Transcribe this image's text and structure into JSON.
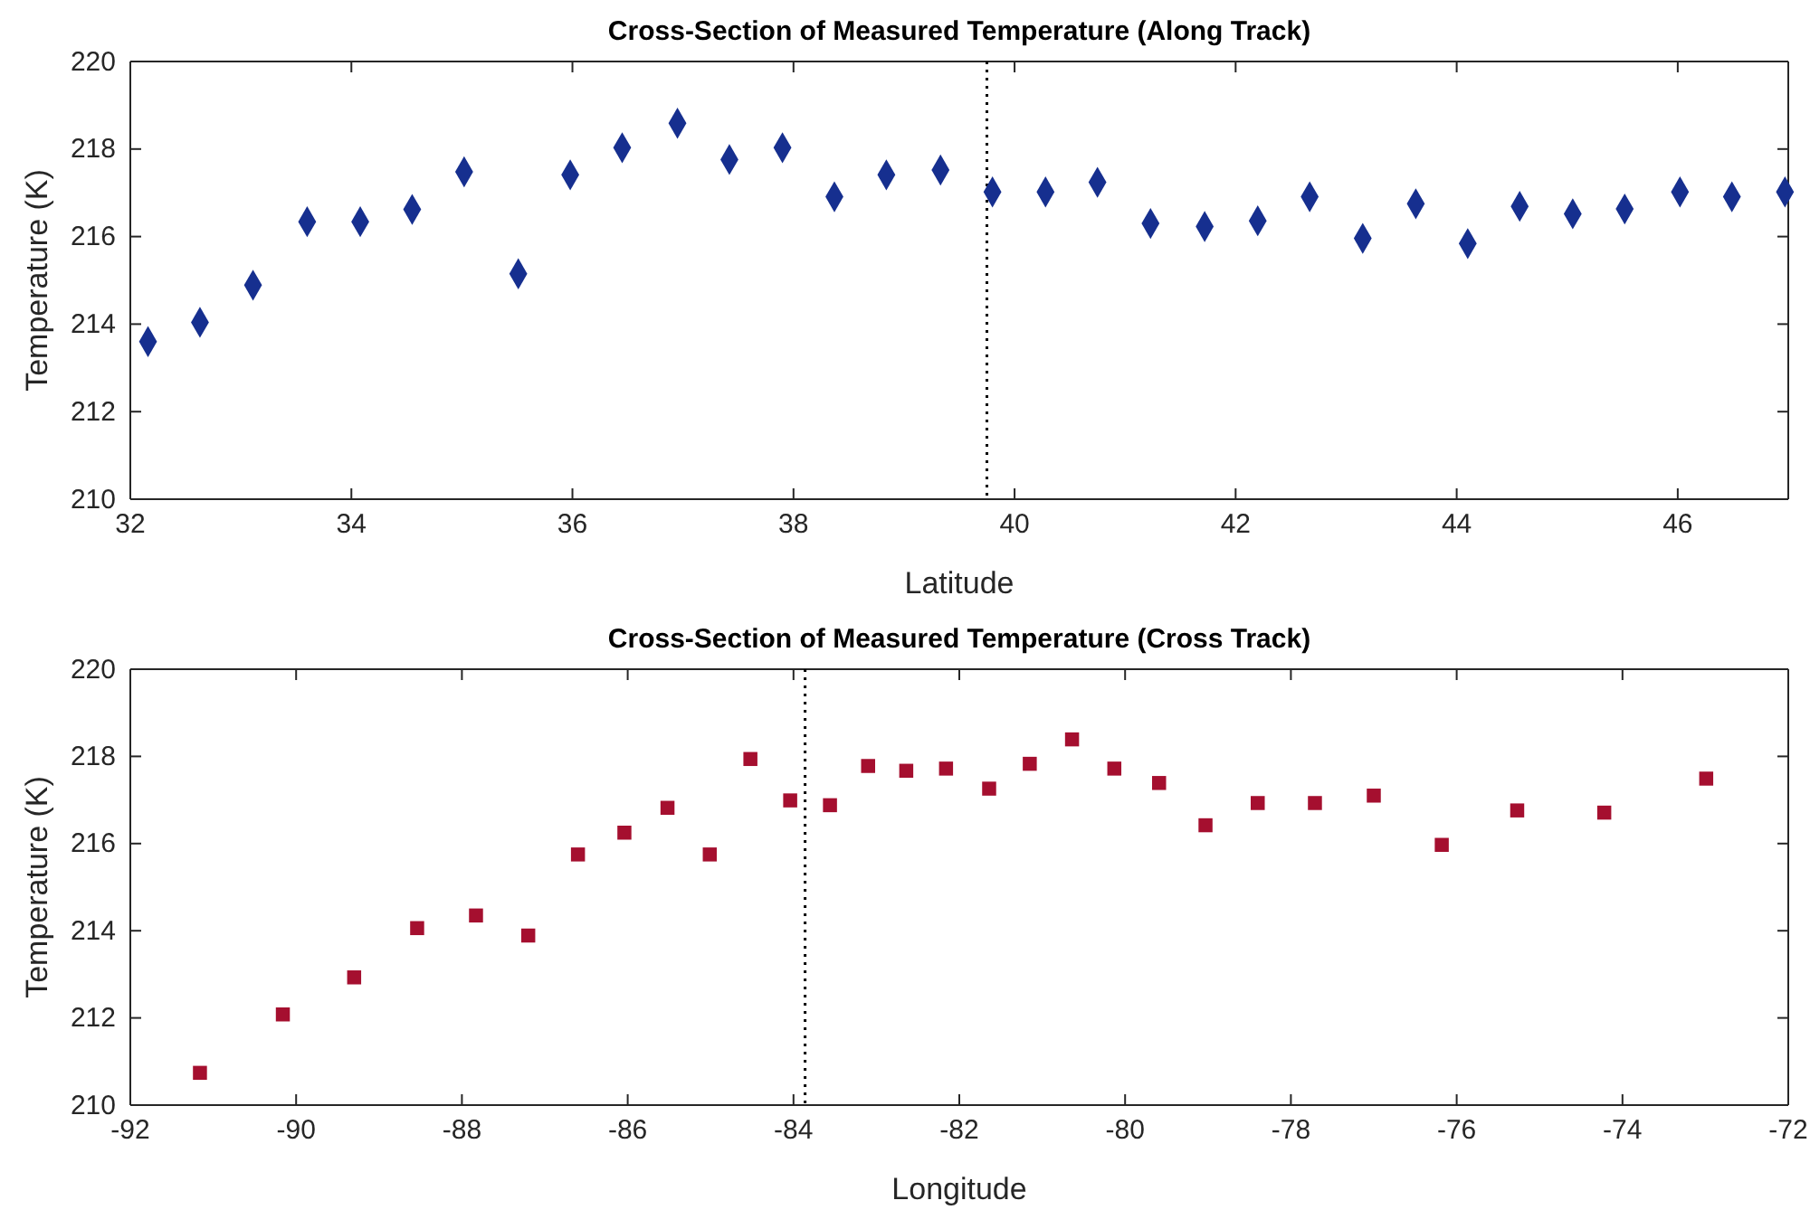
{
  "chart_data": [
    {
      "type": "scatter",
      "title": "Cross-Section of Measured Temperature (Along Track)",
      "xlabel": "Latitude",
      "ylabel": "Temperature (K)",
      "marker": "diamond",
      "grid": false,
      "xlim": [
        32,
        47
      ],
      "xticks": [
        32,
        34,
        36,
        38,
        40,
        42,
        44,
        46
      ],
      "ylim": [
        210,
        220
      ],
      "yticks": [
        210,
        212,
        214,
        216,
        218,
        220
      ],
      "ref_lines": [
        {
          "axis": "x",
          "value": 39.75,
          "line_style": "dotted",
          "color": "#000000"
        }
      ],
      "series": [
        {
          "color": "#162f8f",
          "x": [
            32.16,
            32.63,
            33.11,
            33.6,
            34.08,
            34.55,
            35.02,
            35.51,
            35.98,
            36.45,
            36.95,
            37.42,
            37.9,
            38.37,
            38.84,
            39.33,
            39.8,
            40.28,
            40.75,
            41.23,
            41.72,
            42.2,
            42.67,
            43.15,
            43.63,
            44.1,
            44.57,
            45.05,
            45.52,
            46.02,
            46.49,
            46.97
          ],
          "values": [
            213.6,
            214.04,
            214.89,
            216.34,
            216.34,
            216.62,
            217.48,
            215.15,
            217.41,
            218.03,
            218.59,
            217.76,
            218.03,
            216.91,
            217.41,
            217.52,
            217.02,
            217.02,
            217.24,
            216.3,
            216.23,
            216.36,
            216.91,
            215.96,
            216.75,
            215.84,
            216.69,
            216.52,
            216.63,
            217.02,
            216.91,
            217.02
          ]
        }
      ]
    },
    {
      "type": "scatter",
      "title": "Cross-Section of Measured Temperature (Cross Track)",
      "xlabel": "Longitude",
      "ylabel": "Temperature (K)",
      "marker": "square",
      "grid": false,
      "xlim": [
        -92,
        -72
      ],
      "xticks": [
        -92,
        -90,
        -88,
        -86,
        -84,
        -82,
        -80,
        -78,
        -76,
        -74,
        -72
      ],
      "ylim": [
        210,
        220
      ],
      "yticks": [
        210,
        212,
        214,
        216,
        218,
        220
      ],
      "ref_lines": [
        {
          "axis": "x",
          "value": -83.86,
          "line_style": "dotted",
          "color": "#000000"
        }
      ],
      "series": [
        {
          "color": "#a50f2f",
          "x": [
            -91.16,
            -90.16,
            -89.3,
            -88.54,
            -87.83,
            -87.2,
            -86.6,
            -86.04,
            -85.52,
            -85.01,
            -84.52,
            -84.04,
            -83.56,
            -83.1,
            -82.64,
            -82.16,
            -81.64,
            -81.15,
            -80.64,
            -80.13,
            -79.59,
            -79.03,
            -78.4,
            -77.71,
            -77.0,
            -76.18,
            -75.27,
            -74.22,
            -72.99
          ],
          "values": [
            210.74,
            212.08,
            212.93,
            214.06,
            214.35,
            213.89,
            215.75,
            216.25,
            216.82,
            215.75,
            217.94,
            216.99,
            216.88,
            217.78,
            217.67,
            217.72,
            217.26,
            217.83,
            218.39,
            217.72,
            217.39,
            216.42,
            216.93,
            216.93,
            217.1,
            215.97,
            216.76,
            216.71,
            217.49
          ]
        }
      ]
    }
  ]
}
